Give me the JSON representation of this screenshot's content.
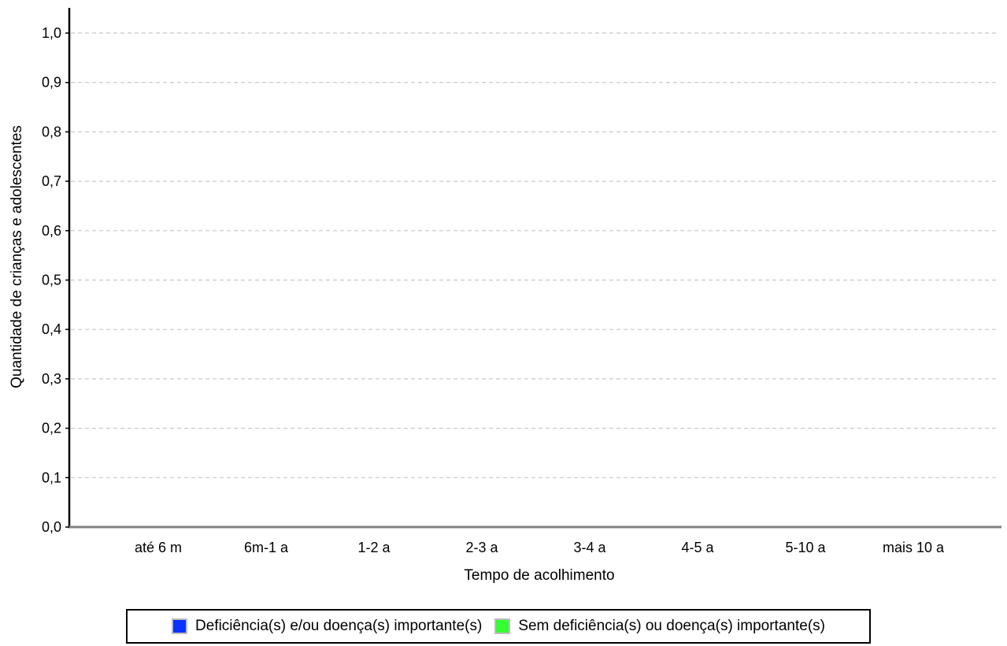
{
  "chart_data": {
    "type": "bar",
    "categories": [
      "até 6 m",
      "6m-1 a",
      "1-2 a",
      "2-3 a",
      "3-4 a",
      "4-5 a",
      "5-10 a",
      "mais 10 a"
    ],
    "series": [
      {
        "name": "Deficiência(s) e/ou doença(s) importante(s)",
        "color": "#0a33ff",
        "values": [
          0,
          0,
          0,
          0,
          0,
          0,
          0,
          0
        ]
      },
      {
        "name": "Sem deficiência(s) ou doença(s) importante(s)",
        "color": "#33ff33",
        "values": [
          0,
          0,
          0,
          0,
          0,
          0,
          0,
          0
        ]
      }
    ],
    "xlabel": "Tempo de acolhimento",
    "ylabel": "Quantidade de crianças e adolescentes",
    "ylim": [
      0,
      1
    ],
    "yticks": [
      "0,0",
      "0,1",
      "0,2",
      "0,3",
      "0,4",
      "0,5",
      "0,6",
      "0,7",
      "0,8",
      "0,9",
      "1,0"
    ],
    "grid": true,
    "legend_position": "bottom"
  }
}
